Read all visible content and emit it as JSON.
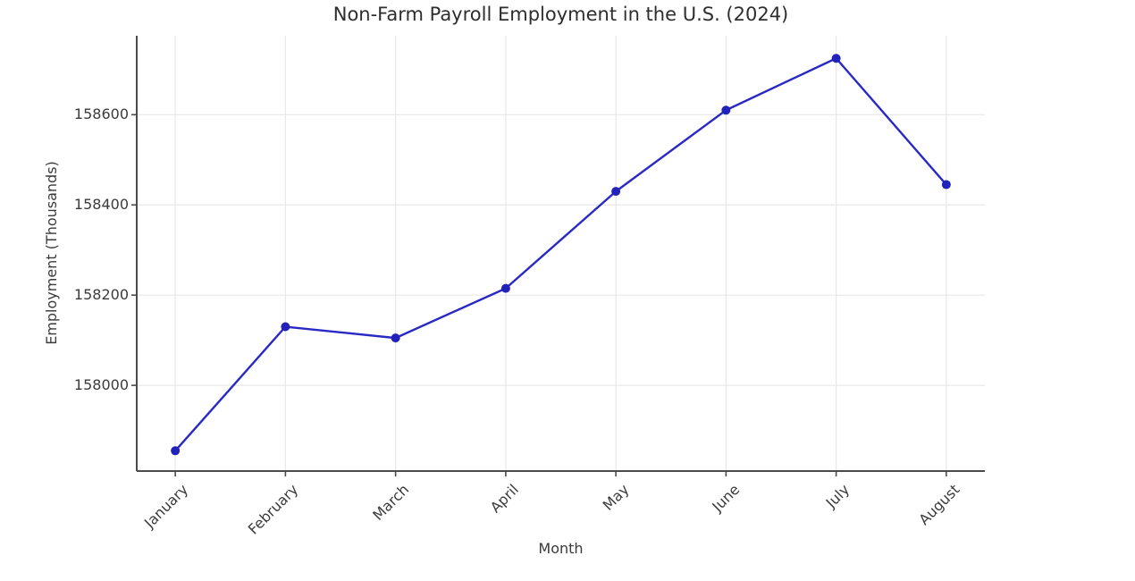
{
  "figure": {
    "background": "#ffffff"
  },
  "colors": {
    "line": "#2929c4",
    "marker": "#2222bb",
    "spine": "#4b4b4b",
    "grid": "#e8e8e8",
    "text": "#3a3a3a"
  },
  "chart_data": {
    "type": "line",
    "title": "Non-Farm Payroll Employment in the U.S. (2024)",
    "xlabel": "Month",
    "ylabel": "Employment (Thousands)",
    "categories": [
      "January",
      "February",
      "March",
      "April",
      "May",
      "June",
      "July",
      "August"
    ],
    "series": [
      {
        "name": "Employment",
        "values": [
          157855,
          158130,
          158105,
          158215,
          158430,
          158610,
          158725,
          158445
        ]
      }
    ],
    "y_ticks": [
      158000,
      158200,
      158400,
      158600
    ],
    "ylim": [
      157810,
      158775
    ],
    "grid": true,
    "legend_position": "none",
    "marker_style": "circle"
  }
}
